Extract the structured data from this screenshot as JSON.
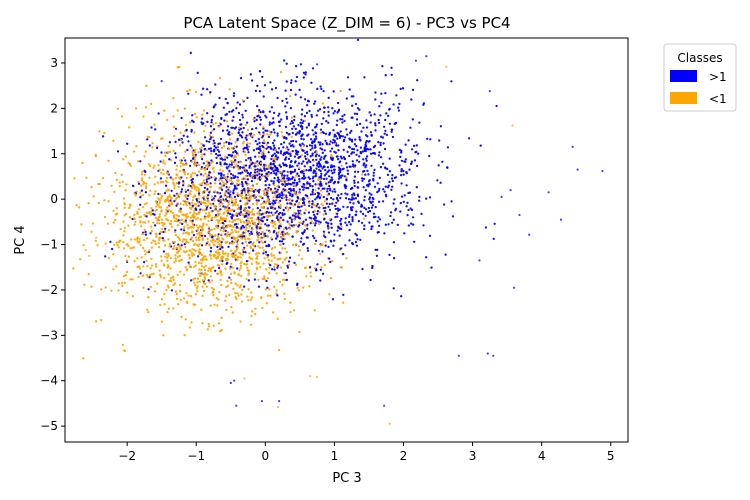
{
  "chart_data": {
    "type": "scatter",
    "title": "PCA Latent Space (Z_DIM = 6) - PC3 vs PC4",
    "xlabel": "PC 3",
    "ylabel": "PC 4",
    "xlim": [
      -2.9,
      5.25
    ],
    "ylim": [
      -5.35,
      3.55
    ],
    "xticks": [
      -2,
      -1,
      0,
      1,
      2,
      3,
      4,
      5
    ],
    "yticks": [
      -5,
      -4,
      -3,
      -2,
      -1,
      0,
      1,
      2,
      3
    ],
    "grid": false,
    "legend": {
      "title": "Classes",
      "placement": "outside-top-right"
    },
    "series": [
      {
        "name": ">1",
        "color": "#0000ff",
        "count_visible": 4200,
        "distribution": {
          "center": [
            0.35,
            0.45
          ],
          "spread": [
            0.95,
            0.95
          ],
          "correlation": 0.1,
          "tail_points": [
            [
              4.88,
              0.62
            ],
            [
              4.52,
              0.65
            ],
            [
              4.45,
              1.15
            ],
            [
              4.28,
              -0.45
            ],
            [
              4.1,
              0.15
            ],
            [
              3.82,
              -0.78
            ],
            [
              3.6,
              -1.95
            ],
            [
              3.3,
              -3.45
            ],
            [
              3.22,
              -3.4
            ],
            [
              3.25,
              2.38
            ],
            [
              2.33,
              3.15
            ],
            [
              2.18,
              3.05
            ],
            [
              1.72,
              -4.55
            ],
            [
              0.75,
              2.97
            ],
            [
              -0.42,
              -4.55
            ],
            [
              -0.5,
              -4.05
            ],
            [
              -0.45,
              -4.0
            ],
            [
              -1.5,
              2.6
            ],
            [
              0.2,
              -4.45
            ],
            [
              -0.05,
              -4.45
            ],
            [
              3.55,
              0.2
            ],
            [
              3.42,
              0.05
            ],
            [
              3.68,
              -0.35
            ],
            [
              3.1,
              -1.35
            ],
            [
              2.8,
              -3.45
            ]
          ]
        }
      },
      {
        "name": "<1",
        "color": "#ffa500",
        "count_visible": 2400,
        "distribution": {
          "center": [
            -0.75,
            -0.45
          ],
          "spread": [
            0.8,
            1.0
          ],
          "correlation": 0.05,
          "tail_points": [
            [
              1.8,
              -4.95
            ],
            [
              0.18,
              -4.58
            ],
            [
              2.62,
              2.92
            ],
            [
              3.58,
              1.62
            ],
            [
              -2.6,
              -1.12
            ],
            [
              -2.55,
              -1.25
            ],
            [
              -2.45,
              -0.85
            ],
            [
              0.75,
              -3.92
            ],
            [
              0.65,
              -3.9
            ],
            [
              -0.3,
              -3.95
            ]
          ]
        }
      }
    ]
  }
}
